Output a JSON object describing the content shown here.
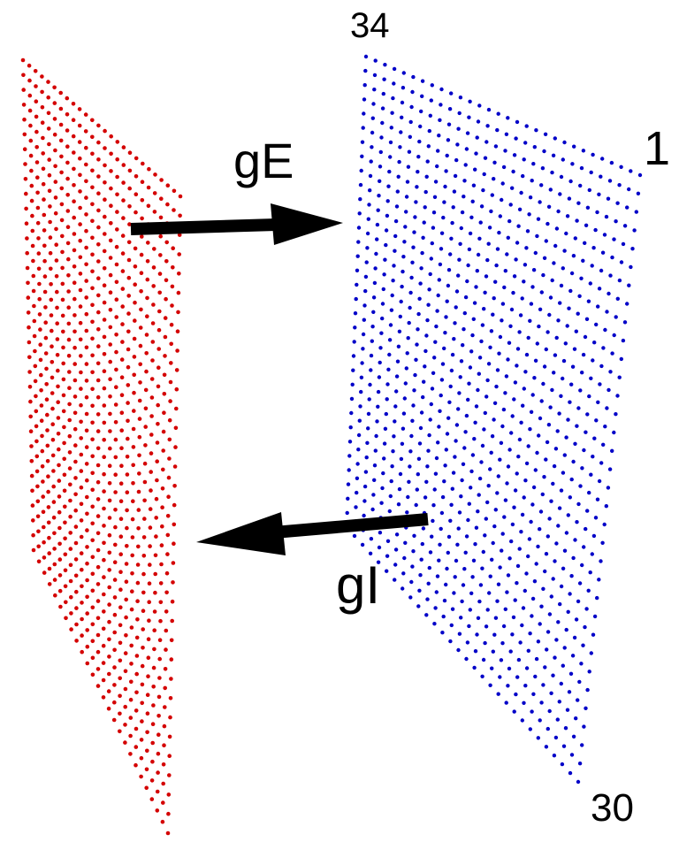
{
  "colors": {
    "excitatory": "#d40000",
    "inhibitory": "#0000c8",
    "arrow": "#000000",
    "background": "#ffffff"
  },
  "excitatory_layer": {
    "name": "",
    "dot_color": "#d40000"
  },
  "inhibitory_layer": {
    "name": "",
    "dot_color": "#0000c8",
    "corner_labels": {
      "top_left": "34",
      "top_right": "1",
      "bottom_right": "30"
    }
  },
  "connections": {
    "excitatory_to_inhibitory": {
      "label": "gE"
    },
    "inhibitory_to_excitatory": {
      "label": "gI"
    }
  }
}
